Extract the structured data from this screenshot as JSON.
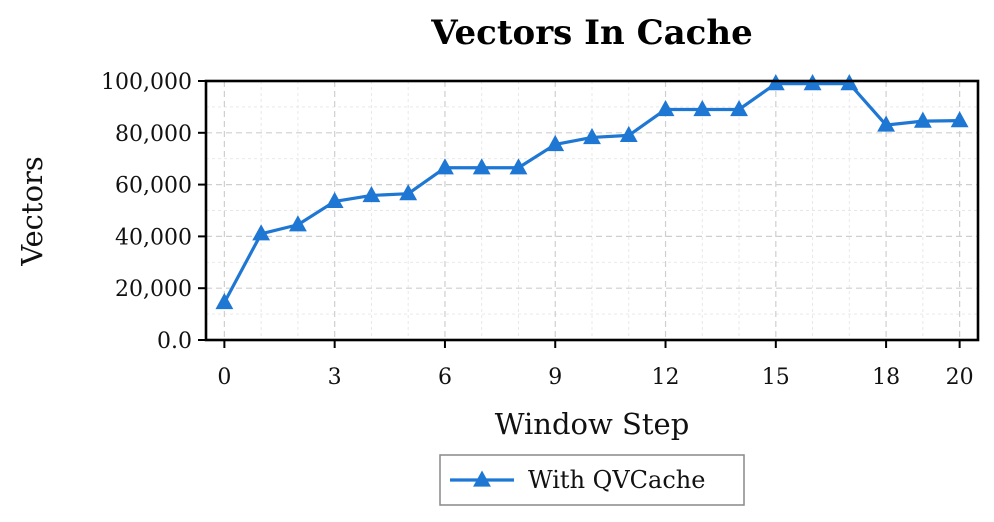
{
  "chart_data": {
    "type": "line",
    "title": "Vectors In Cache",
    "xlabel": "Window Step",
    "ylabel": "Vectors",
    "xlim": [
      -0.5,
      20.5
    ],
    "ylim": [
      0,
      100000
    ],
    "xticks": [
      0,
      3,
      6,
      9,
      12,
      15,
      18,
      20
    ],
    "xtick_labels": [
      "0",
      "3",
      "6",
      "9",
      "12",
      "15",
      "18",
      "20"
    ],
    "yticks": [
      0,
      20000,
      40000,
      60000,
      80000,
      100000
    ],
    "ytick_labels": [
      "0.0",
      "20,000",
      "40,000",
      "60,000",
      "80,000",
      "100,000"
    ],
    "grid": true,
    "legend_position": "bottom-center",
    "x": [
      0,
      1,
      2,
      3,
      4,
      5,
      6,
      7,
      8,
      9,
      10,
      11,
      12,
      13,
      14,
      15,
      16,
      17,
      18,
      19,
      20
    ],
    "series": [
      {
        "name": "With QVCache",
        "color": "#1f77d4",
        "marker": "triangle-up",
        "values": [
          14500,
          41000,
          44500,
          53500,
          55800,
          56500,
          66500,
          66500,
          66500,
          75500,
          78200,
          79000,
          89000,
          89000,
          89000,
          99000,
          99000,
          99000,
          83000,
          84500,
          84700
        ]
      }
    ]
  }
}
